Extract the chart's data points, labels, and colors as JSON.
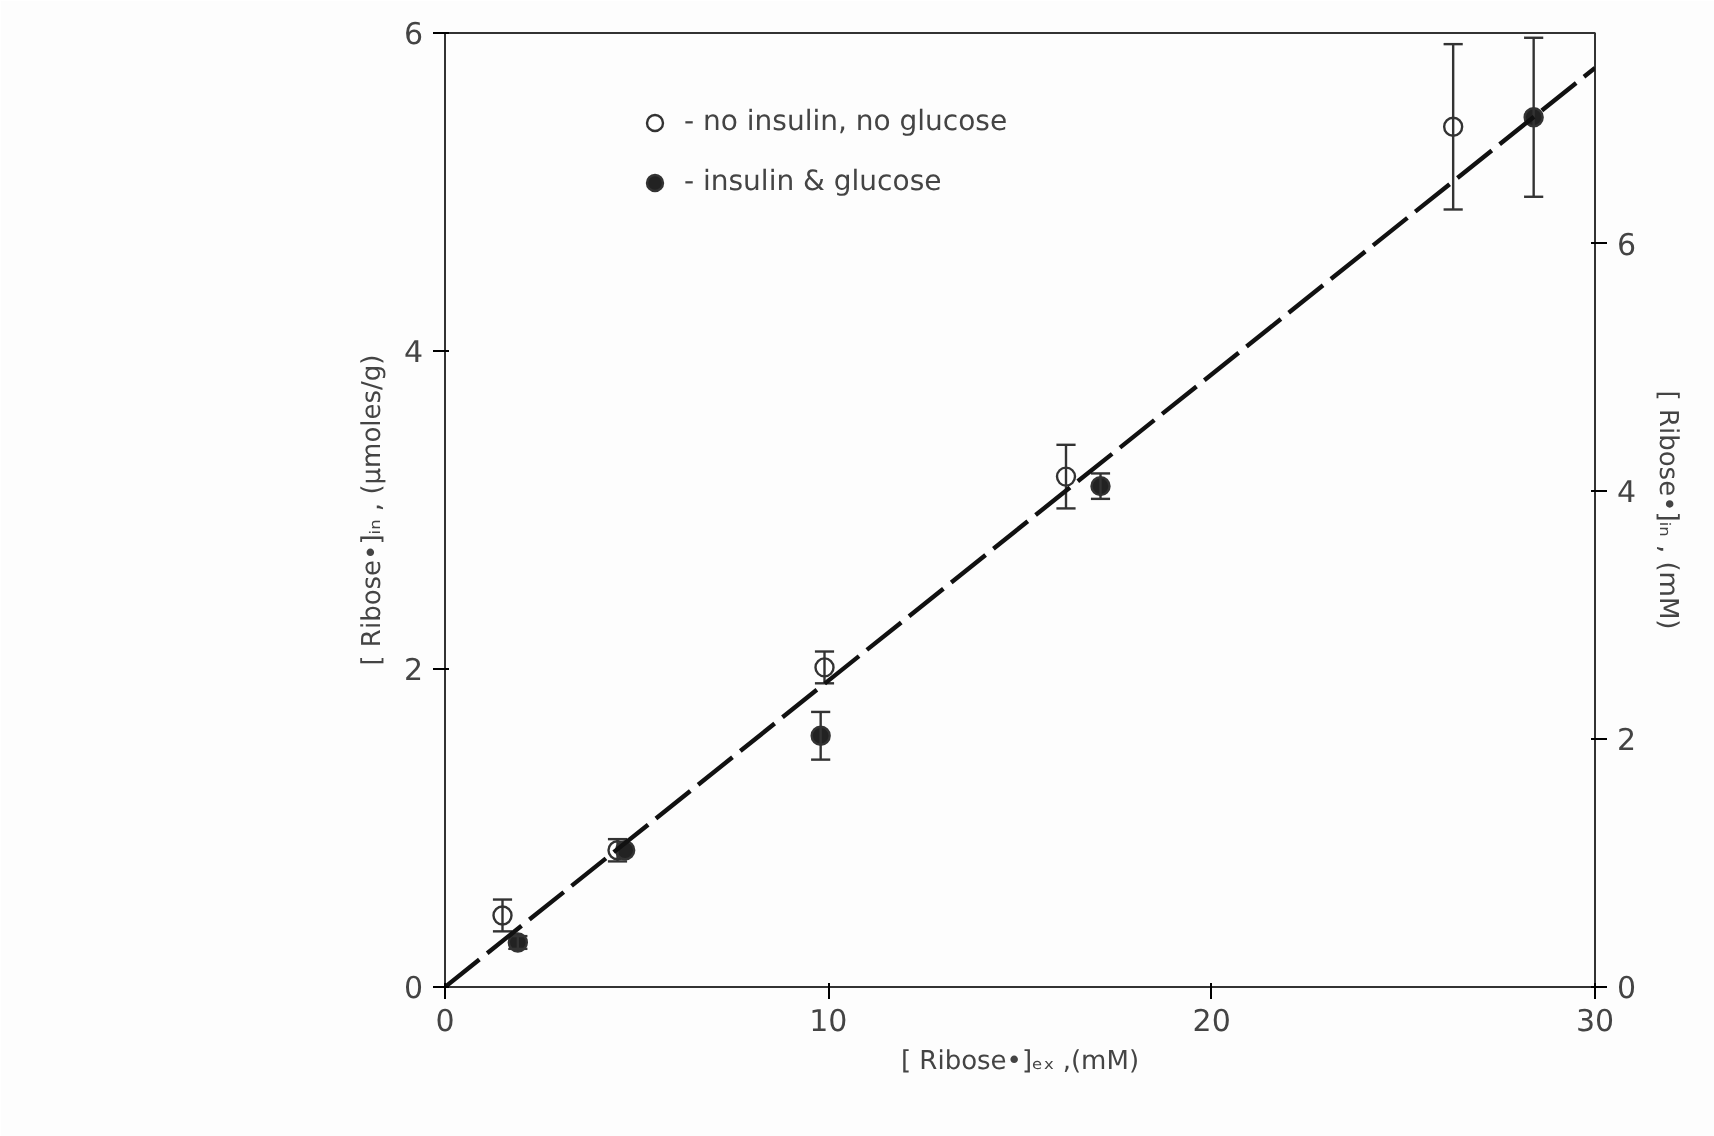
{
  "chart_data": {
    "type": "scatter",
    "xlabel": "[ Ribose•]ₑₓ ,(mM)",
    "ylabel": "[ Ribose•]ᵢₙ , (µmoles/g)",
    "y2label": "[ Ribose•]ᵢₙ , (mM)",
    "xlim": [
      0,
      30
    ],
    "xticks": [
      0,
      10,
      20,
      30
    ],
    "ylim": [
      0,
      6
    ],
    "yticks": [
      0,
      2,
      4,
      6
    ],
    "y2lim": [
      0,
      7.7
    ],
    "y2ticks": [
      0,
      2,
      4,
      6
    ],
    "grid": false,
    "legend": "top left",
    "series": [
      {
        "name": "- no insulin, no glucose",
        "color": "#ffffff",
        "marker": "circle",
        "x": [
          1.5,
          4.5,
          9.9,
          16.2,
          26.3
        ],
        "values": [
          0.45,
          0.86,
          2.01,
          3.21,
          5.41
        ],
        "errors": [
          0.1,
          0.07,
          0.1,
          0.2,
          0.52
        ]
      },
      {
        "name": "- insulin & glucose",
        "color": "#222222",
        "marker": "circle",
        "x": [
          1.9,
          4.7,
          9.8,
          17.1,
          28.4
        ],
        "values": [
          0.28,
          0.86,
          1.58,
          3.15,
          5.47
        ],
        "errors": [
          0.04,
          null,
          0.15,
          0.08,
          0.5
        ]
      },
      {
        "type": "line",
        "color": "#111111",
        "line_style": "dashed",
        "x": [
          0,
          30
        ],
        "values": [
          0,
          5.78
        ]
      }
    ]
  }
}
